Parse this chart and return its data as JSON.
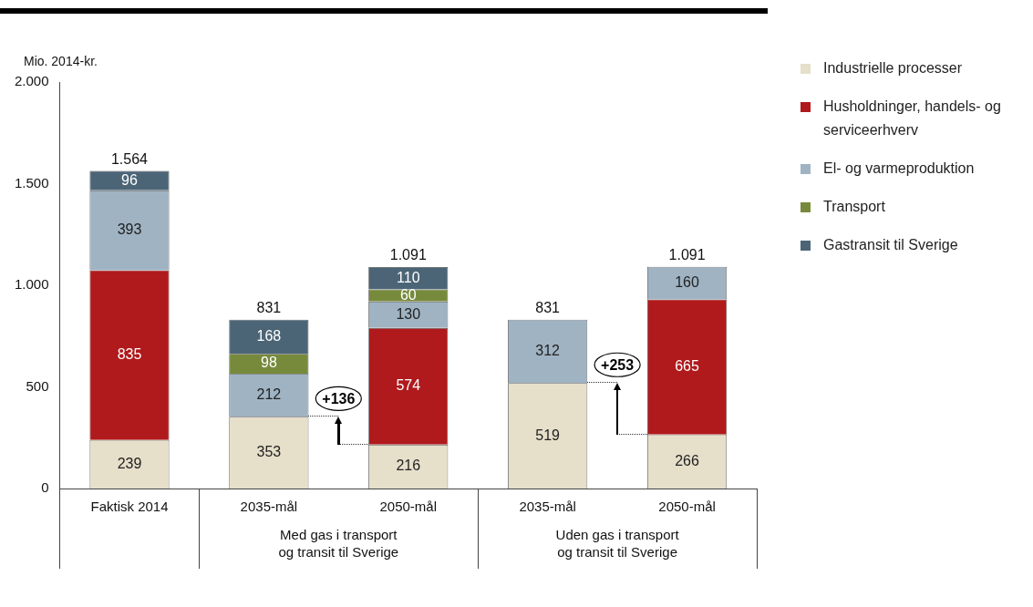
{
  "chart_data": {
    "type": "bar",
    "stacked": true,
    "ylabel": "Mio. 2014-kr.",
    "categories": [
      "Faktisk 2014",
      "2035-mål",
      "2050-mål",
      "2035-mål",
      "2050-mål"
    ],
    "series": [
      {
        "name": "Industrielle processer",
        "color": "#e6dfca",
        "values": [
          239,
          353,
          216,
          519,
          266
        ]
      },
      {
        "name": "Husholdninger, handels- og serviceerhverv",
        "color": "#b01a1c",
        "values": [
          835,
          null,
          574,
          null,
          665
        ]
      },
      {
        "name": "El- og varmeproduktion",
        "color": "#9fb3c3",
        "values": [
          393,
          212,
          130,
          312,
          160
        ]
      },
      {
        "name": "Transport",
        "color": "#778a3c",
        "values": [
          null,
          98,
          60,
          null,
          null
        ]
      },
      {
        "name": "Gastransit til Sverige",
        "color": "#4c6576",
        "values": [
          96,
          168,
          110,
          null,
          null
        ]
      }
    ],
    "ylim": [
      0,
      2000
    ],
    "yticks": [
      0,
      500,
      {
        "value": 1000,
        "label": "1.000"
      },
      {
        "value": 1500,
        "label": "1.500"
      },
      {
        "value": 2000,
        "label": "2.000"
      }
    ],
    "grid": false,
    "legend": "right",
    "data_labels": true,
    "totals": [
      "1.564",
      "831",
      "1.091",
      "831",
      "1.091"
    ],
    "annotations": [
      "Med gas i transport\nog transit til Sverige",
      "Uden gas i transport\nog transit til Sverige",
      "+136",
      "+253"
    ]
  }
}
